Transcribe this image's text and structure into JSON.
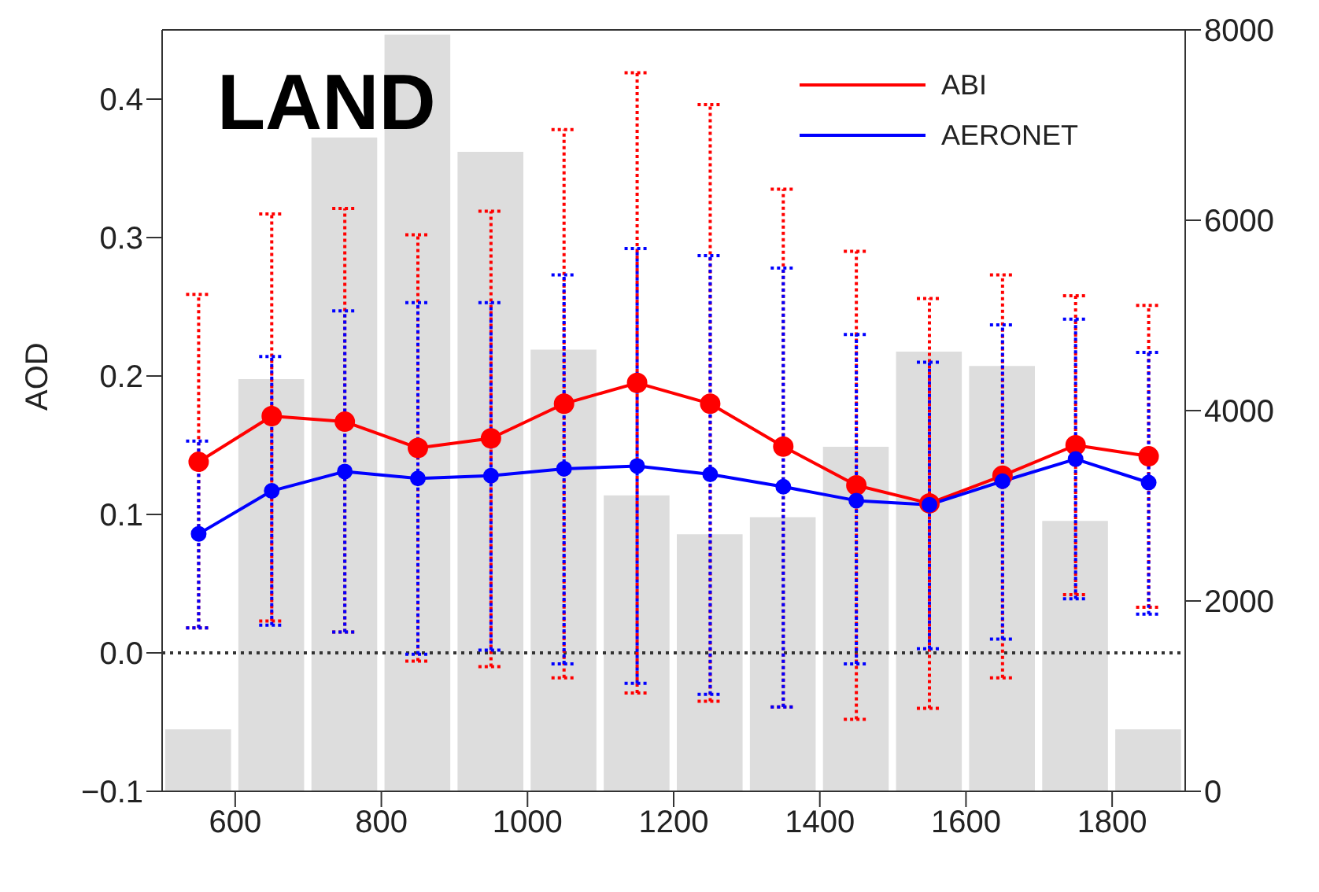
{
  "chart_data": {
    "type": "line",
    "ylabel": "AOD",
    "annotations": [
      "LAND"
    ],
    "xlim": [
      500,
      1900
    ],
    "xticks": [
      600,
      800,
      1000,
      1200,
      1400,
      1600,
      1800
    ],
    "ylim": [
      -0.1,
      0.45
    ],
    "yticks": [
      {
        "value": -0.1,
        "label": "−0.1"
      },
      {
        "value": 0,
        "label": "0.0"
      },
      0.1,
      0.2,
      0.3,
      0.4
    ],
    "y2lim": [
      0,
      8000
    ],
    "y2ticks": [
      0,
      2000,
      4000,
      6000,
      8000
    ],
    "grid": false,
    "legend": "top right",
    "marker": "circle",
    "line_style": "solid",
    "ref_lines": [
      {
        "axis": "y",
        "value": 0,
        "color": "#333333",
        "line_style": "dotted"
      }
    ],
    "series": [
      {
        "type": "histogram",
        "axis": "y2",
        "color": "#dddddd",
        "bins": [
          500,
          600,
          700,
          800,
          900,
          1000,
          1100,
          1200,
          1300,
          1400,
          1500,
          1600,
          1700,
          1800,
          1900
        ],
        "values": [
          650,
          4330,
          6870,
          7950,
          6720,
          4640,
          3110,
          2700,
          2880,
          3620,
          4620,
          4470,
          2840,
          650
        ]
      },
      {
        "name": "ABI",
        "color": "#ff0000",
        "x": [
          550,
          650,
          750,
          850,
          950,
          1050,
          1150,
          1250,
          1350,
          1450,
          1550,
          1650,
          1750,
          1850
        ],
        "values": [
          0.138,
          0.171,
          0.167,
          0.148,
          0.155,
          0.18,
          0.195,
          0.18,
          0.149,
          0.121,
          0.108,
          0.128,
          0.15,
          0.142
        ],
        "errors": [
          [
            0.018,
            0.259
          ],
          [
            0.023,
            0.317
          ],
          [
            0.015,
            0.321
          ],
          [
            -0.006,
            0.302
          ],
          [
            -0.01,
            0.319
          ],
          [
            -0.018,
            0.378
          ],
          [
            -0.029,
            0.419
          ],
          [
            -0.035,
            0.396
          ],
          [
            -0.039,
            0.335
          ],
          [
            -0.048,
            0.29
          ],
          [
            -0.04,
            0.256
          ],
          [
            -0.018,
            0.273
          ],
          [
            0.042,
            0.258
          ],
          [
            0.033,
            0.251
          ]
        ]
      },
      {
        "name": "AERONET",
        "color": "#0000ff",
        "x": [
          550,
          650,
          750,
          850,
          950,
          1050,
          1150,
          1250,
          1350,
          1450,
          1550,
          1650,
          1750,
          1850
        ],
        "values": [
          0.086,
          0.117,
          0.131,
          0.126,
          0.128,
          0.133,
          0.135,
          0.129,
          0.12,
          0.11,
          0.107,
          0.124,
          0.14,
          0.123
        ],
        "errors": [
          [
            0.018,
            0.153
          ],
          [
            0.02,
            0.214
          ],
          [
            0.015,
            0.247
          ],
          [
            -0.001,
            0.253
          ],
          [
            0.002,
            0.253
          ],
          [
            -0.008,
            0.273
          ],
          [
            -0.022,
            0.292
          ],
          [
            -0.03,
            0.287
          ],
          [
            -0.039,
            0.278
          ],
          [
            -0.008,
            0.23
          ],
          [
            0.003,
            0.21
          ],
          [
            0.01,
            0.237
          ],
          [
            0.039,
            0.241
          ],
          [
            0.028,
            0.217
          ]
        ]
      }
    ]
  }
}
